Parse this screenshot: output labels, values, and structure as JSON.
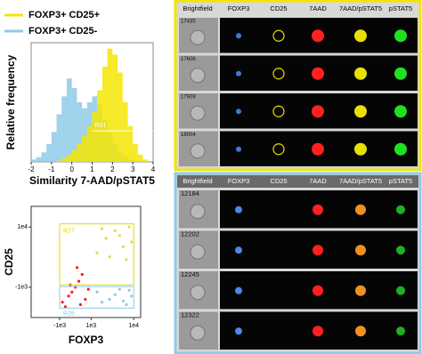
{
  "chart_data": [
    {
      "type": "histogram",
      "xlabel": "Similarity  7-AAD/pSTAT5",
      "ylabel": "Relative frequency",
      "bins": [
        -2,
        -1.75,
        -1.5,
        -1.25,
        -1,
        -0.75,
        -0.5,
        -0.25,
        0,
        0.25,
        0.5,
        0.75,
        1,
        1.25,
        1.5,
        1.75,
        2,
        2.25,
        2.5,
        2.75,
        3,
        3.25,
        3.5,
        3.75,
        4
      ],
      "series": [
        {
          "name": "FOXP3+ CD25-",
          "color": "#8ecae8",
          "values": [
            0.02,
            0.04,
            0.08,
            0.15,
            0.25,
            0.4,
            0.55,
            0.7,
            0.62,
            0.5,
            0.45,
            0.5,
            0.55,
            0.48,
            0.35,
            0.25,
            0.15,
            0.08,
            0.05,
            0.02,
            0.01,
            0,
            0,
            0
          ]
        },
        {
          "name": "FOXP3+ CD25+",
          "color": "#f5e600",
          "values": [
            0,
            0,
            0,
            0,
            0,
            0.01,
            0.03,
            0.06,
            0.1,
            0.15,
            0.22,
            0.3,
            0.42,
            0.6,
            0.8,
            0.95,
            0.9,
            0.75,
            0.5,
            0.3,
            0.15,
            0.06,
            0.02,
            0
          ]
        }
      ],
      "xlim": [
        -2,
        4
      ],
      "xticks": [
        -2,
        -1,
        0,
        1,
        2,
        3,
        4
      ],
      "ylim": [
        0,
        1
      ],
      "gate": {
        "label": "R31",
        "x": [
          1,
          4
        ],
        "y": 0.26
      }
    },
    {
      "type": "scatter",
      "xlabel": "FOXP3",
      "ylabel": "CD25",
      "xscale": "biexponential",
      "yscale": "biexponential",
      "xlim": [
        -5000,
        14000
      ],
      "ylim": [
        -7700,
        34000
      ],
      "xticks": [
        {
          "value": -1000,
          "label": "-1e3"
        },
        {
          "value": 1000,
          "label": "1e3"
        },
        {
          "value": 10000,
          "label": "1e4"
        }
      ],
      "yticks": [
        {
          "value": -1000,
          "label": "-1e3"
        },
        {
          "value": 10000,
          "label": "1e4"
        }
      ],
      "gates": [
        {
          "label": "R27",
          "color": "#e0d800",
          "x": [
            -1000,
            10000
          ],
          "y": [
            -800,
            12000
          ]
        },
        {
          "label": "R26",
          "color": "#8ecae8",
          "x": [
            -1000,
            10000
          ],
          "y": [
            -4350,
            -950
          ]
        }
      ],
      "series": [
        {
          "color": "#ff1a1a",
          "x": [
            -800,
            -400,
            -200,
            0,
            200,
            400,
            600,
            800,
            -600,
            300,
            100,
            -300
          ],
          "y": [
            -3000,
            -2000,
            -1500,
            -1000,
            -500,
            0,
            -2500,
            -1200,
            -4000,
            -3500,
            500,
            -800
          ]
        },
        {
          "color": "#e6dc3c",
          "x": [
            1500,
            2500,
            4000,
            6000,
            8000,
            3000,
            5000,
            9000,
            2000,
            7000
          ],
          "y": [
            2000,
            5000,
            8000,
            3000,
            10000,
            1500,
            6000,
            4000,
            9000,
            1200
          ]
        },
        {
          "color": "#8ecae8",
          "x": [
            1500,
            3000,
            5000,
            7000,
            9000,
            2000,
            4000,
            6000,
            8000
          ],
          "y": [
            -1500,
            -2500,
            -1200,
            -3500,
            -2000,
            -3000,
            -1800,
            -2800,
            -1300
          ]
        }
      ]
    }
  ],
  "image_panels": [
    {
      "border_color": "#f0e600",
      "columns": [
        "Brightfield",
        "FOXP3",
        "CD25",
        "7AAD",
        "7AAD/pSTAT5",
        "pSTAT5"
      ],
      "rows": [
        "17435",
        "17606",
        "17909",
        "18004"
      ]
    },
    {
      "border_color": "#8ecae8",
      "columns": [
        "Brightfield",
        "FOXP3",
        "CD25",
        "7AAD",
        "7AAD/pSTAT5",
        "pSTAT5"
      ],
      "rows": [
        "12184",
        "12202",
        "12245",
        "12322"
      ]
    }
  ]
}
